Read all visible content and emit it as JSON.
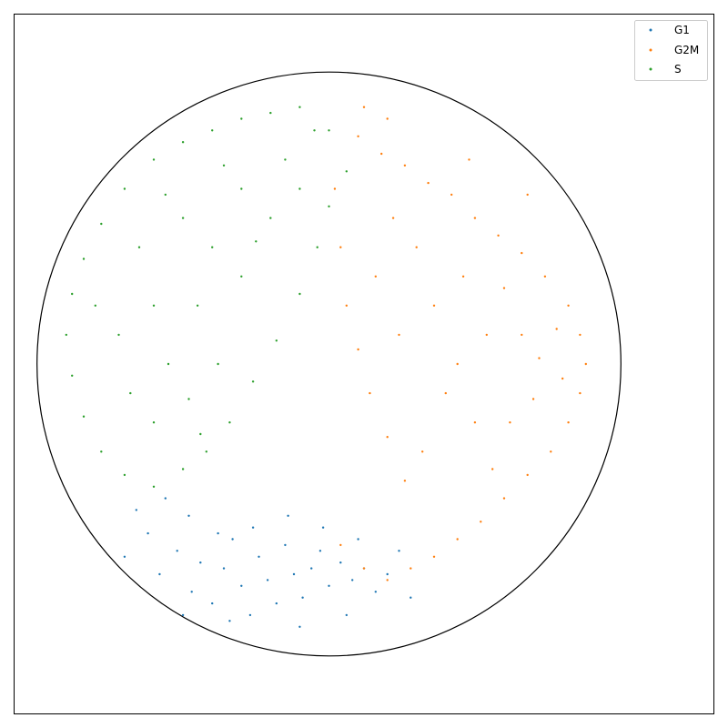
{
  "chart_data": {
    "type": "scatter",
    "title": "",
    "xlabel": "",
    "ylabel": "",
    "xlim": [
      -1.08,
      1.32
    ],
    "ylim": [
      -1.2,
      1.2
    ],
    "grid": false,
    "ticks_visible": false,
    "legend_placement": "top-right",
    "boundary_circle": {
      "center": [
        0,
        0
      ],
      "radius": 1
    },
    "series": [
      {
        "name": "G1",
        "color": "#1f77b4",
        "points": [
          [
            -0.58,
            -0.72
          ],
          [
            -0.52,
            -0.64
          ],
          [
            -0.47,
            -0.78
          ],
          [
            -0.44,
            -0.68
          ],
          [
            -0.4,
            -0.82
          ],
          [
            -0.36,
            -0.7
          ],
          [
            -0.33,
            -0.6
          ],
          [
            -0.3,
            -0.76
          ],
          [
            -0.27,
            -0.86
          ],
          [
            -0.24,
            -0.66
          ],
          [
            -0.21,
            -0.74
          ],
          [
            -0.18,
            -0.82
          ],
          [
            -0.15,
            -0.62
          ],
          [
            -0.12,
            -0.72
          ],
          [
            -0.09,
            -0.8
          ],
          [
            -0.06,
            -0.7
          ],
          [
            -0.03,
            -0.64
          ],
          [
            0.0,
            -0.76
          ],
          [
            0.04,
            -0.68
          ],
          [
            0.08,
            -0.74
          ],
          [
            0.12,
            -0.7
          ],
          [
            0.16,
            -0.78
          ],
          [
            0.2,
            -0.72
          ],
          [
            -0.62,
            -0.58
          ],
          [
            -0.66,
            -0.5
          ],
          [
            -0.56,
            -0.46
          ],
          [
            -0.48,
            -0.52
          ],
          [
            -0.38,
            -0.58
          ],
          [
            -0.26,
            -0.56
          ],
          [
            -0.14,
            -0.52
          ],
          [
            -0.02,
            -0.56
          ],
          [
            0.1,
            -0.6
          ],
          [
            0.24,
            -0.64
          ],
          [
            0.28,
            -0.8
          ],
          [
            -0.34,
            -0.88
          ],
          [
            -0.1,
            -0.9
          ],
          [
            0.06,
            -0.86
          ],
          [
            -0.7,
            -0.66
          ],
          [
            -0.5,
            -0.86
          ]
        ]
      },
      {
        "name": "G2M",
        "color": "#ff7f0e",
        "points": [
          [
            0.1,
            0.78
          ],
          [
            0.18,
            0.72
          ],
          [
            0.26,
            0.68
          ],
          [
            0.34,
            0.62
          ],
          [
            0.42,
            0.58
          ],
          [
            0.5,
            0.5
          ],
          [
            0.58,
            0.44
          ],
          [
            0.66,
            0.38
          ],
          [
            0.74,
            0.3
          ],
          [
            0.82,
            0.2
          ],
          [
            0.86,
            0.1
          ],
          [
            0.88,
            0.0
          ],
          [
            0.86,
            -0.1
          ],
          [
            0.82,
            -0.2
          ],
          [
            0.76,
            -0.3
          ],
          [
            0.68,
            -0.38
          ],
          [
            0.6,
            -0.46
          ],
          [
            0.52,
            -0.54
          ],
          [
            0.44,
            -0.6
          ],
          [
            0.36,
            -0.66
          ],
          [
            0.28,
            -0.7
          ],
          [
            0.2,
            -0.74
          ],
          [
            0.12,
            -0.7
          ],
          [
            0.04,
            -0.62
          ],
          [
            0.02,
            0.6
          ],
          [
            0.04,
            0.4
          ],
          [
            0.06,
            0.2
          ],
          [
            0.1,
            0.05
          ],
          [
            0.14,
            -0.1
          ],
          [
            0.2,
            -0.25
          ],
          [
            0.26,
            -0.4
          ],
          [
            0.3,
            0.4
          ],
          [
            0.36,
            0.2
          ],
          [
            0.44,
            0.0
          ],
          [
            0.5,
            -0.2
          ],
          [
            0.56,
            -0.36
          ],
          [
            0.6,
            0.26
          ],
          [
            0.66,
            0.1
          ],
          [
            0.7,
            -0.12
          ],
          [
            0.54,
            0.1
          ],
          [
            0.46,
            0.3
          ],
          [
            0.4,
            -0.1
          ],
          [
            0.32,
            -0.3
          ],
          [
            0.22,
            0.5
          ],
          [
            0.16,
            0.3
          ],
          [
            0.24,
            0.1
          ],
          [
            0.62,
            -0.2
          ],
          [
            0.72,
            0.02
          ],
          [
            0.8,
            -0.05
          ],
          [
            0.78,
            0.12
          ],
          [
            0.12,
            0.88
          ],
          [
            0.2,
            0.84
          ],
          [
            0.48,
            0.7
          ],
          [
            0.68,
            0.58
          ]
        ]
      },
      {
        "name": "S",
        "color": "#2ca02c",
        "points": [
          [
            -0.6,
            0.7
          ],
          [
            -0.5,
            0.76
          ],
          [
            -0.4,
            0.8
          ],
          [
            -0.3,
            0.84
          ],
          [
            -0.2,
            0.86
          ],
          [
            -0.1,
            0.88
          ],
          [
            0.0,
            0.8
          ],
          [
            0.06,
            0.66
          ],
          [
            -0.7,
            0.6
          ],
          [
            -0.78,
            0.48
          ],
          [
            -0.84,
            0.36
          ],
          [
            -0.88,
            0.24
          ],
          [
            -0.9,
            0.1
          ],
          [
            -0.88,
            -0.04
          ],
          [
            -0.84,
            -0.18
          ],
          [
            -0.78,
            -0.3
          ],
          [
            -0.7,
            -0.38
          ],
          [
            -0.6,
            -0.42
          ],
          [
            -0.5,
            -0.36
          ],
          [
            -0.42,
            -0.3
          ],
          [
            -0.34,
            -0.2
          ],
          [
            -0.26,
            -0.06
          ],
          [
            -0.18,
            0.08
          ],
          [
            -0.1,
            0.24
          ],
          [
            -0.04,
            0.4
          ],
          [
            0.0,
            0.54
          ],
          [
            -0.5,
            0.5
          ],
          [
            -0.4,
            0.4
          ],
          [
            -0.3,
            0.3
          ],
          [
            -0.2,
            0.5
          ],
          [
            -0.6,
            0.2
          ],
          [
            -0.55,
            0.0
          ],
          [
            -0.48,
            -0.12
          ],
          [
            -0.38,
            0.0
          ],
          [
            -0.3,
            0.6
          ],
          [
            -0.1,
            0.6
          ],
          [
            -0.65,
            0.4
          ],
          [
            -0.72,
            0.1
          ],
          [
            -0.6,
            -0.2
          ],
          [
            -0.45,
            0.2
          ],
          [
            -0.25,
            0.42
          ],
          [
            -0.15,
            0.7
          ],
          [
            -0.68,
            -0.1
          ],
          [
            -0.8,
            0.2
          ],
          [
            -0.36,
            0.68
          ],
          [
            -0.05,
            0.8
          ],
          [
            -0.56,
            0.58
          ],
          [
            -0.44,
            -0.24
          ]
        ]
      }
    ]
  }
}
